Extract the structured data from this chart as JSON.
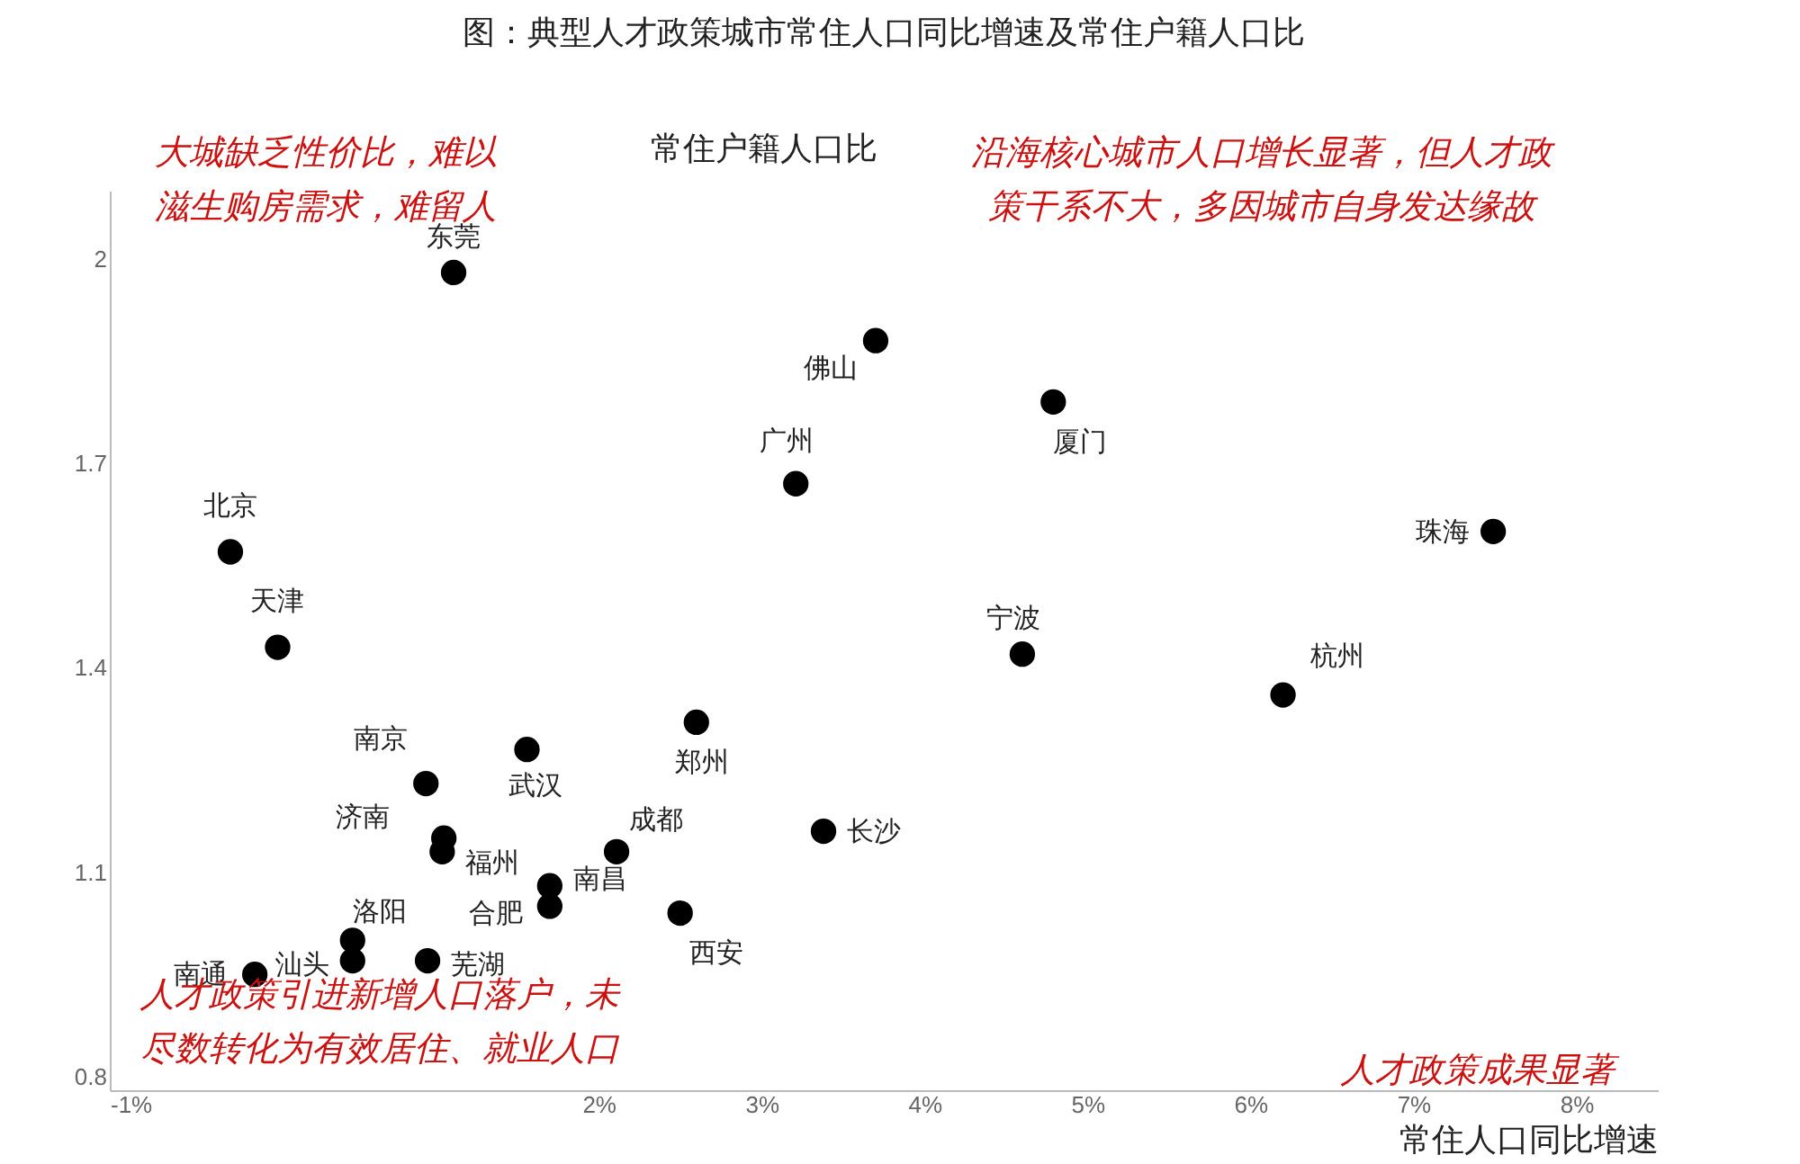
{
  "chart_data": {
    "type": "scatter",
    "title": "图：典型人才政策城市常住人口同比增速及常住户籍人口比",
    "xlabel": "常住人口同比增速",
    "ylabel": "常住户籍人口比",
    "x": [
      1.11,
      3.7,
      4.79,
      3.21,
      7.49,
      -0.26,
      0.03,
      4.6,
      6.2,
      2.6,
      1.56,
      0.94,
      1.05,
      1.04,
      3.38,
      2.11,
      1.7,
      1.7,
      2.5,
      0.49,
      0.49,
      0.95,
      -0.11
    ],
    "values": [
      1.98,
      1.88,
      1.79,
      1.67,
      1.6,
      1.57,
      1.43,
      1.42,
      1.36,
      1.32,
      1.28,
      1.23,
      1.15,
      1.13,
      1.16,
      1.13,
      1.08,
      1.05,
      1.04,
      1.0,
      0.97,
      0.97,
      0.95
    ],
    "value_labels": [
      "东莞",
      "佛山",
      "厦门",
      "广州",
      "珠海",
      "北京",
      "天津",
      "宁波",
      "杭州",
      "郑州",
      "武汉",
      "南京",
      "济南",
      "福州",
      "长沙",
      "成都",
      "南昌",
      "合肥",
      "西安",
      "洛阳",
      "汕头",
      "芜湖",
      "南通"
    ],
    "color": "#000000",
    "marker": "circle",
    "xlim": [
      -1,
      8.5
    ],
    "xticks": [
      {
        "value": -1,
        "label": "-1%"
      },
      {
        "value": 2,
        "label": "2%"
      },
      {
        "value": 3,
        "label": "3%"
      },
      {
        "value": 4,
        "label": "4%"
      },
      {
        "value": 5,
        "label": "5%"
      },
      {
        "value": 6,
        "label": "6%"
      },
      {
        "value": 7,
        "label": "7%"
      },
      {
        "value": 8,
        "label": "8%"
      }
    ],
    "ylim": [
      0.78,
      2.1
    ],
    "yticks": [
      0.8,
      1.1,
      1.4,
      1.7,
      2
    ],
    "grid": false,
    "annotations": [
      "大城缺乏性价比，难以滋生购房需求，难留人",
      "沿海核心城市人口增长显著，但人才政策干系不大，多因城市自身发达缘故",
      "人才政策引进新增人口落户，未尽数转化为有效居住、就业人口",
      "人才政策成果显著"
    ]
  }
}
